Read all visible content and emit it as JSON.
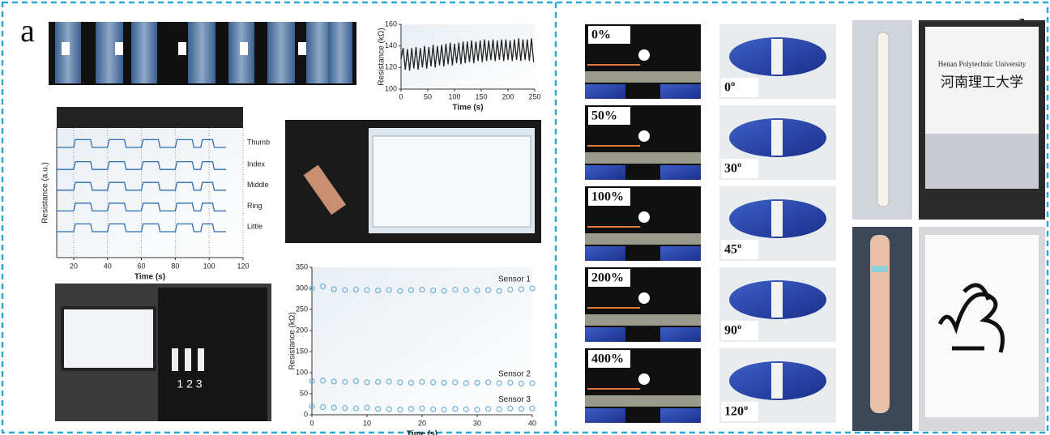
{
  "panel_labels": [
    "a",
    "b"
  ],
  "strain_labels": [
    "0%",
    "50%",
    "100%",
    "200%",
    "400%"
  ],
  "angle_labels": [
    "0º",
    "30º",
    "45º",
    "90º",
    "120º"
  ],
  "tablet_texts": [
    "Henan Polytechnic University",
    "河南理工大学"
  ],
  "vest_numbers": "1 2 3",
  "chart_data": [
    {
      "type": "line",
      "x_label": "Time (s)",
      "y_label": "Resistance (kΩ)",
      "xlim": [
        0,
        250
      ],
      "xticks": [
        0,
        50,
        100,
        150,
        200,
        250
      ],
      "ylim": [
        100,
        160
      ],
      "yticks": [
        100,
        120,
        140,
        160
      ],
      "x": [
        0,
        4,
        8,
        12,
        16,
        20,
        24,
        28,
        32,
        36,
        40,
        44,
        48,
        52,
        56,
        60,
        64,
        68,
        72,
        76,
        80,
        84,
        88,
        92,
        96,
        100,
        104,
        108,
        112,
        116,
        120,
        124,
        128,
        132,
        136,
        140,
        144,
        148,
        152,
        156,
        160,
        164,
        168,
        172,
        176,
        180,
        184,
        188,
        192,
        196,
        200,
        204,
        208,
        212,
        216,
        220,
        224,
        228,
        232,
        236,
        240,
        244,
        248
      ],
      "series": [
        {
          "name": null,
          "color": "#222222",
          "values": [
            128,
            138,
            118,
            137,
            117,
            138,
            119,
            139,
            118,
            138,
            120,
            140,
            119,
            139,
            121,
            141,
            120,
            140,
            122,
            141,
            121,
            142,
            123,
            143,
            122,
            142,
            124,
            143,
            123,
            144,
            124,
            144,
            125,
            145,
            124,
            144,
            126,
            145,
            125,
            146,
            126,
            145,
            127,
            146,
            126,
            145,
            127,
            146,
            126,
            146,
            127,
            145,
            126,
            146,
            127,
            147,
            126,
            146,
            127,
            146,
            126,
            147,
            125
          ]
        }
      ]
    },
    {
      "type": "line",
      "x_label": "Time (s)",
      "y_label": "Resistance (a.u.)",
      "xlim": [
        10,
        120
      ],
      "xticks": [
        20,
        40,
        60,
        80,
        100,
        120
      ],
      "ylim": [
        0,
        10
      ],
      "grid": true,
      "x": [
        10,
        20,
        21,
        30,
        31,
        40,
        41,
        50,
        51,
        60,
        61,
        70,
        71,
        80,
        81,
        90,
        91,
        95,
        96,
        102,
        103,
        110
      ],
      "series": [
        {
          "name": "Thumb",
          "color": "#2f6db5",
          "values": [
            8.5,
            8.5,
            9.1,
            9.1,
            8.5,
            8.5,
            9.1,
            9.1,
            8.5,
            8.5,
            9.1,
            9.1,
            8.5,
            8.5,
            9.1,
            9.1,
            8.5,
            8.5,
            9.1,
            9.1,
            8.5,
            8.5
          ]
        },
        {
          "name": "Index",
          "color": "#2f6db5",
          "values": [
            6.8,
            6.8,
            7.4,
            7.4,
            6.8,
            6.8,
            7.4,
            7.4,
            6.8,
            6.8,
            7.4,
            7.4,
            6.8,
            6.8,
            7.4,
            7.4,
            6.8,
            6.8,
            7.4,
            7.4,
            6.8,
            6.8
          ]
        },
        {
          "name": "Middle",
          "color": "#2f6db5",
          "values": [
            5.2,
            5.2,
            5.8,
            5.8,
            5.2,
            5.2,
            5.8,
            5.8,
            5.2,
            5.2,
            5.8,
            5.8,
            5.2,
            5.2,
            5.8,
            5.8,
            5.2,
            5.2,
            5.8,
            5.8,
            5.2,
            5.2
          ]
        },
        {
          "name": "Ring",
          "color": "#2f6db5",
          "values": [
            3.6,
            3.6,
            4.2,
            4.2,
            3.6,
            3.6,
            4.2,
            4.2,
            3.6,
            3.6,
            4.2,
            4.2,
            3.6,
            3.6,
            4.2,
            4.2,
            3.6,
            3.6,
            4.2,
            4.2,
            3.6,
            3.6
          ]
        },
        {
          "name": "Little",
          "color": "#2f6db5",
          "values": [
            2.0,
            2.0,
            2.6,
            2.6,
            2.0,
            2.0,
            2.6,
            2.6,
            2.0,
            2.0,
            2.6,
            2.6,
            2.0,
            2.0,
            2.6,
            2.6,
            2.0,
            2.0,
            2.6,
            2.6,
            2.0,
            2.0
          ]
        }
      ]
    },
    {
      "type": "scatter",
      "x_label": "Time (s)",
      "y_label": "Resistance (kΩ)",
      "xlim": [
        0,
        40
      ],
      "xticks": [
        0,
        10,
        20,
        30,
        40
      ],
      "ylim": [
        0,
        350
      ],
      "yticks": [
        0,
        50,
        100,
        150,
        200,
        250,
        300,
        350
      ],
      "x": [
        0,
        2,
        4,
        6,
        8,
        10,
        12,
        14,
        16,
        18,
        20,
        22,
        24,
        26,
        28,
        30,
        32,
        34,
        36,
        38,
        40
      ],
      "series": [
        {
          "name": "Sensor 1",
          "color": "#6fb0d6",
          "values": [
            300,
            305,
            298,
            296,
            297,
            296,
            295,
            296,
            294,
            296,
            297,
            295,
            294,
            297,
            296,
            295,
            296,
            294,
            297,
            298,
            300
          ]
        },
        {
          "name": "Sensor 2",
          "color": "#6fb0d6",
          "values": [
            80,
            81,
            79,
            78,
            80,
            77,
            78,
            79,
            77,
            76,
            78,
            77,
            76,
            77,
            75,
            76,
            77,
            75,
            76,
            74,
            75
          ]
        },
        {
          "name": "Sensor 3",
          "color": "#6fb0d6",
          "values": [
            20,
            18,
            17,
            16,
            15,
            17,
            14,
            13,
            12,
            14,
            15,
            13,
            12,
            14,
            13,
            12,
            14,
            13,
            15,
            14,
            15
          ]
        }
      ]
    }
  ]
}
